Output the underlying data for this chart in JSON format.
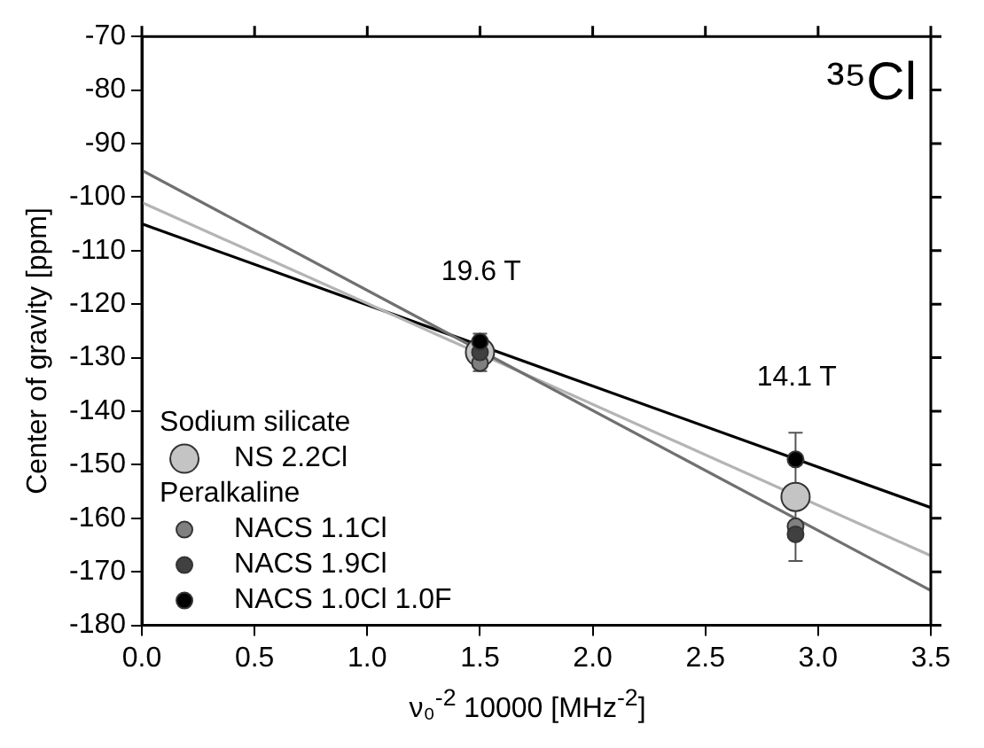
{
  "chart_data": {
    "type": "scatter",
    "xlabel": "ν₀$^{-2}$ 10000 [MHz$^{-2}$]",
    "ylabel": "Center of gravity [ppm]",
    "xlim": [
      0,
      3.5
    ],
    "xticks": [
      {
        "value": 0,
        "label": "0.0"
      },
      {
        "value": 0.5,
        "label": "0.5"
      },
      {
        "value": 1,
        "label": "1.0"
      },
      {
        "value": 1.5,
        "label": "1.5"
      },
      {
        "value": 2,
        "label": "2.0"
      },
      {
        "value": 2.5,
        "label": "2.5"
      },
      {
        "value": 3,
        "label": "3.0"
      },
      {
        "value": 3.5,
        "label": "3.5"
      }
    ],
    "ylim": [
      -180,
      -70
    ],
    "yticks": [
      -180,
      -170,
      -160,
      -150,
      -140,
      -130,
      -120,
      -110,
      -100,
      -90,
      -80,
      -70
    ],
    "legend": "bottom left",
    "marker": "circle",
    "grid": false,
    "annotations": [
      "Sodium silicate",
      "Peralkaline",
      "³⁵Cl",
      "19.6 T",
      "14.1 T"
    ],
    "series": [
      {
        "name": "NS 2.2Cl",
        "color": "#c4c4c4",
        "x": [
          1.5,
          2.9
        ],
        "values": [
          -129,
          -156
        ],
        "errors": [
          3.5,
          null
        ]
      },
      {
        "name": "NACS 1.1Cl",
        "color": "#808080",
        "x": [
          1.5,
          2.9
        ],
        "values": [
          -131,
          -161.5
        ]
      },
      {
        "name": "NACS 1.9Cl",
        "color": "#404040",
        "x": [
          1.5,
          2.9
        ],
        "values": [
          -129,
          -163
        ],
        "errors": [
          null,
          5
        ]
      },
      {
        "name": "NACS 1.0Cl 1.0F",
        "color": "#000000",
        "x": [
          1.5,
          2.9
        ],
        "values": [
          -127,
          -149
        ],
        "errors": [
          null,
          5
        ]
      },
      {
        "type": "line",
        "color": "#707070",
        "x": [
          0,
          3.5
        ],
        "values": [
          -95,
          -173.5
        ],
        "marker": "none"
      },
      {
        "type": "line",
        "color": "#b4b4b4",
        "x": [
          0,
          3.5
        ],
        "values": [
          -101,
          -167
        ],
        "marker": "none"
      },
      {
        "type": "line",
        "color": "#000000",
        "x": [
          0,
          3.5
        ],
        "values": [
          -105,
          -158
        ],
        "marker": "none"
      }
    ]
  }
}
